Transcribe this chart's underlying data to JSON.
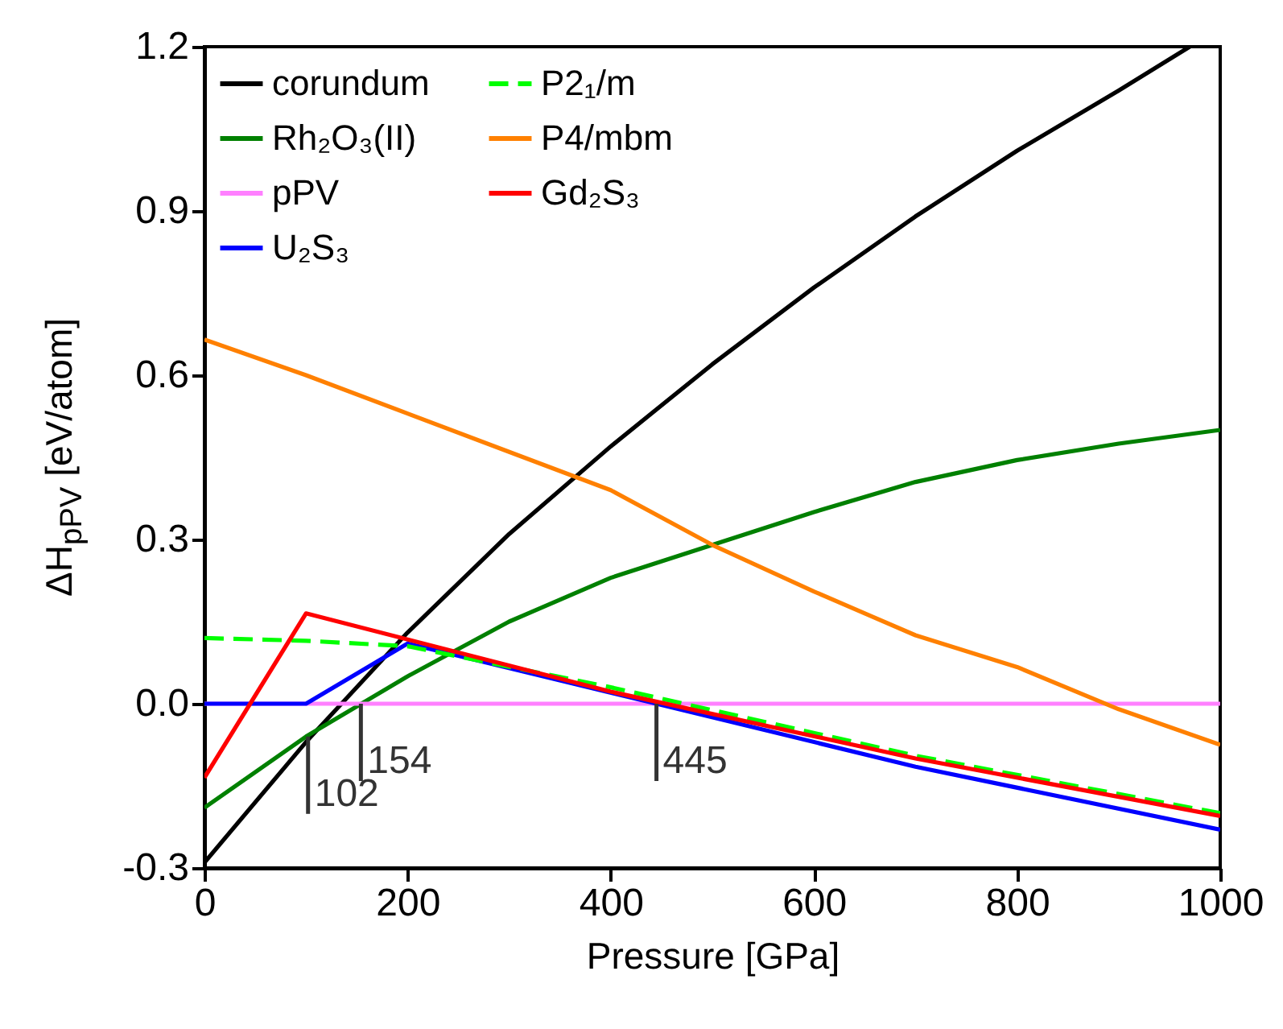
{
  "chart_data": {
    "type": "line",
    "xlabel": "Pressure [GPa]",
    "ylabel": "ΔH$_{pPV}$ [eV/atom]",
    "xlim": [
      0,
      1000
    ],
    "ylim": [
      -0.3,
      1.2
    ],
    "xticks": [
      0,
      200,
      400,
      600,
      800,
      1000
    ],
    "yticks": [
      -0.3,
      {
        "value": 0,
        "label": "0.0"
      },
      0.3,
      0.6,
      0.9,
      1.2
    ],
    "grid": false,
    "legend": "top left",
    "line_style": "solid",
    "series": [
      {
        "name": "corundum",
        "color": "#000000",
        "x": [
          0,
          100,
          200,
          300,
          400,
          500,
          600,
          700,
          800,
          900,
          970
        ],
        "values": [
          -0.29,
          -0.07,
          0.13,
          0.31,
          0.47,
          0.62,
          0.76,
          0.89,
          1.01,
          1.12,
          1.2
        ]
      },
      {
        "name": "Rh₂O₃(II)",
        "color": "#008000",
        "x": [
          0,
          100,
          200,
          300,
          400,
          500,
          600,
          700,
          800,
          900,
          1000
        ],
        "values": [
          -0.19,
          -0.06,
          0.05,
          0.15,
          0.23,
          0.29,
          0.35,
          0.405,
          0.445,
          0.475,
          0.5
        ]
      },
      {
        "name": "pPV",
        "color": "#ff80ff",
        "x": [
          0,
          1000
        ],
        "values": [
          0,
          0
        ]
      },
      {
        "name": "U₂S₃",
        "color": "#0000ff",
        "x": [
          0,
          100,
          200,
          445,
          700,
          1000
        ],
        "values": [
          0,
          0,
          0.11,
          0,
          -0.115,
          -0.23
        ]
      },
      {
        "name": "P2₁/m",
        "color": "#00ff00",
        "line_style": "dashed",
        "x": [
          0,
          100,
          200,
          400,
          700,
          1000
        ],
        "values": [
          0.12,
          0.115,
          0.105,
          0.03,
          -0.095,
          -0.2
        ]
      },
      {
        "name": "P4/mbm",
        "color": "#ff8000",
        "x": [
          0,
          100,
          200,
          300,
          400,
          500,
          600,
          700,
          800,
          900,
          1000
        ],
        "values": [
          0.665,
          0.6,
          0.53,
          0.46,
          0.39,
          0.29,
          0.205,
          0.125,
          0.067,
          -0.01,
          -0.075
        ]
      },
      {
        "name": "Gd₂S₃",
        "color": "#ff0000",
        "x": [
          0,
          100,
          400,
          700,
          1000
        ],
        "values": [
          -0.135,
          0.165,
          0.022,
          -0.1,
          -0.205
        ]
      }
    ],
    "annotations": [
      {
        "text": "102",
        "x": 102,
        "y": -0.06
      },
      {
        "text": "154",
        "x": 154,
        "y": 0
      },
      {
        "text": "445",
        "x": 445,
        "y": 0
      }
    ]
  }
}
